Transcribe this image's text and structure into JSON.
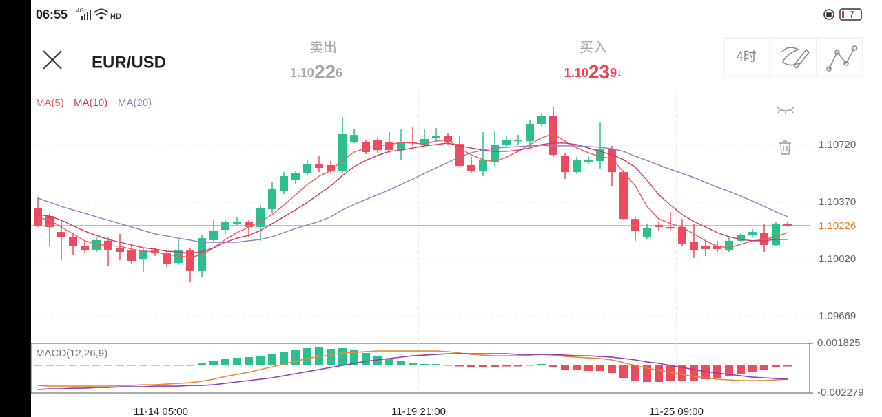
{
  "status_bar": {
    "time": "06:55",
    "network": "4G",
    "hd": "HD",
    "battery": "7"
  },
  "header": {
    "symbol": "EUR/USD",
    "sell_label": "卖出",
    "sell_price": {
      "head": "1.10",
      "pips": "22",
      "tail": "6"
    },
    "buy_label": "买入",
    "buy_price": {
      "head": "1.10",
      "pips": "23",
      "tail": "9",
      "arrow": "↓"
    },
    "timeframe": "4时"
  },
  "chart_data": [
    {
      "type": "candlestick",
      "categories": [
        null,
        null,
        null,
        null,
        null,
        null,
        null,
        null,
        null,
        null,
        "11-14 05:00",
        null,
        null,
        null,
        null,
        null,
        null,
        null,
        null,
        null,
        null,
        null,
        null,
        null,
        null,
        null,
        null,
        null,
        null,
        null,
        null,
        null,
        "11-19 21:00",
        null,
        null,
        null,
        null,
        null,
        null,
        null,
        null,
        null,
        null,
        null,
        null,
        null,
        null,
        null,
        null,
        null,
        null,
        null,
        null,
        null,
        "11-25 09:00",
        null,
        null,
        null,
        null,
        null,
        null,
        null,
        null,
        null,
        null
      ],
      "open": [
        1.10336,
        1.10285,
        1.10188,
        1.10155,
        1.101,
        1.10079,
        1.10134,
        1.10087,
        1.10074,
        1.1002,
        1.10074,
        1.10057,
        1.09998,
        1.10074,
        1.09948,
        1.10138,
        1.10201,
        1.10239,
        1.10252,
        1.10218,
        1.10328,
        1.10441,
        1.10505,
        1.10547,
        1.10606,
        1.10598,
        1.10564,
        1.10741,
        1.10741,
        1.1075,
        1.10741,
        1.1069,
        1.10741,
        1.10724,
        1.10766,
        1.10779,
        1.10728,
        1.10598,
        1.1056,
        1.10619,
        1.10724,
        1.10745,
        1.10745,
        1.10851,
        1.10901,
        1.10657,
        1.10555,
        1.10619,
        1.10623,
        1.10699,
        1.10555,
        1.10268,
        1.10159,
        1.10231,
        1.10218,
        1.10218,
        1.10125,
        1.10104,
        1.101,
        1.10074,
        1.10134,
        1.10167,
        1.10184,
        1.10108,
        1.10235
      ],
      "high": [
        1.10399,
        1.10302,
        1.1026,
        1.10176,
        1.10134,
        1.10155,
        1.10155,
        1.10176,
        1.10108,
        1.10091,
        1.10091,
        1.1007,
        1.10146,
        1.10091,
        1.10167,
        1.1026,
        1.1026,
        1.10281,
        1.1026,
        1.10353,
        1.10492,
        1.10555,
        1.10564,
        1.10631,
        1.10652,
        1.10623,
        1.10893,
        1.10817,
        1.10754,
        1.10766,
        1.108,
        1.10817,
        1.1083,
        1.10817,
        1.10826,
        1.10792,
        1.10779,
        1.10648,
        1.108,
        1.10809,
        1.10775,
        1.10783,
        1.10872,
        1.10918,
        1.10956,
        1.10669,
        1.10648,
        1.10652,
        1.10859,
        1.10716,
        1.10568,
        1.10281,
        1.10239,
        1.10252,
        1.10311,
        1.10268,
        1.10239,
        1.10134,
        1.10134,
        1.10155,
        1.10184,
        1.10205,
        1.10235,
        1.10247,
        1.10252
      ],
      "low": [
        1.10218,
        1.10104,
        1.10015,
        1.10049,
        1.10062,
        1.10066,
        1.09982,
        1.10015,
        1.09994,
        1.09944,
        1.10041,
        1.09973,
        1.09986,
        1.0988,
        1.0991,
        1.10125,
        1.10176,
        1.10231,
        1.10155,
        1.10134,
        1.10302,
        1.1042,
        1.10484,
        1.10539,
        1.10555,
        1.10547,
        1.10547,
        1.10733,
        1.10665,
        1.10674,
        1.10674,
        1.10631,
        1.10716,
        1.10716,
        1.10737,
        1.10724,
        1.10585,
        1.10547,
        1.1053,
        1.10585,
        1.10712,
        1.1072,
        1.10707,
        1.10838,
        1.10648,
        1.10513,
        1.10543,
        1.10606,
        1.10572,
        1.10471,
        1.1026,
        1.10134,
        1.10146,
        1.10197,
        1.10201,
        1.10104,
        1.10028,
        1.10041,
        1.10066,
        1.10066,
        1.10125,
        1.10159,
        1.10066,
        1.101,
        1.10218
      ],
      "close": [
        1.10226,
        1.10218,
        1.10155,
        1.101,
        1.10074,
        1.10138,
        1.10079,
        1.10066,
        1.10011,
        1.10074,
        1.10057,
        1.09994,
        1.10074,
        1.09948,
        1.1015,
        1.10197,
        1.10247,
        1.10252,
        1.10218,
        1.10332,
        1.1045,
        1.1053,
        1.10547,
        1.10606,
        1.10581,
        1.10564,
        1.10788,
        1.10783,
        1.10678,
        1.1069,
        1.1069,
        1.10741,
        1.10733,
        1.10758,
        1.10775,
        1.10737,
        1.10593,
        1.1056,
        1.10627,
        1.10724,
        1.1075,
        1.10754,
        1.10851,
        1.10901,
        1.10661,
        1.10555,
        1.10627,
        1.10631,
        1.10699,
        1.10555,
        1.10268,
        1.10193,
        1.10214,
        1.10218,
        1.10209,
        1.10117,
        1.10074,
        1.10083,
        1.10083,
        1.10134,
        1.10171,
        1.10188,
        1.10108,
        1.10235,
        1.10226
      ],
      "series": [
        {
          "name": "MA(5)",
          "color": "#ef5a5a",
          "values": [
            1.10277,
            1.1026,
            1.10218,
            1.10176,
            1.10134,
            1.10112,
            1.10104,
            1.101,
            1.10083,
            1.1007,
            1.10066,
            1.10049,
            1.10041,
            1.10032,
            1.10049,
            1.10091,
            1.10142,
            1.10184,
            1.10218,
            1.10252,
            1.10294,
            1.10353,
            1.10416,
            1.10479,
            1.1053,
            1.10564,
            1.10627,
            1.10678,
            1.10703,
            1.10716,
            1.10724,
            1.10737,
            1.10733,
            1.10728,
            1.10745,
            1.10754,
            1.10703,
            1.10661,
            1.10631,
            1.10619,
            1.10648,
            1.10682,
            1.10724,
            1.10766,
            1.10788,
            1.10745,
            1.10703,
            1.10674,
            1.10648,
            1.1064,
            1.10555,
            1.10471,
            1.10344,
            1.10268,
            1.10239,
            1.10218,
            1.10176,
            1.10134,
            1.101,
            1.10091,
            1.10112,
            1.10134,
            1.10142,
            1.10159,
            1.10184
          ]
        },
        {
          "name": "MA(10)",
          "color": "#d2336b",
          "values": [
            1.10294,
            1.10285,
            1.1026,
            1.10226,
            1.10193,
            1.10167,
            1.10142,
            1.10125,
            1.10108,
            1.10091,
            1.10083,
            1.1007,
            1.10066,
            1.10057,
            1.10066,
            1.10091,
            1.10125,
            1.1015,
            1.10167,
            1.10197,
            1.10239,
            1.10281,
            1.10323,
            1.1037,
            1.1042,
            1.10471,
            1.10534,
            1.10589,
            1.10627,
            1.10657,
            1.10682,
            1.1069,
            1.10703,
            1.10716,
            1.10724,
            1.10733,
            1.10716,
            1.10703,
            1.1069,
            1.10682,
            1.10682,
            1.1069,
            1.10703,
            1.10724,
            1.10733,
            1.10733,
            1.10724,
            1.10703,
            1.10682,
            1.10661,
            1.10631,
            1.10585,
            1.10505,
            1.10416,
            1.10353,
            1.10294,
            1.10252,
            1.10218,
            1.10184,
            1.10159,
            1.10142,
            1.10134,
            1.10134,
            1.10142,
            1.10142
          ]
        },
        {
          "name": "MA(20)",
          "color": "#8d80c9",
          "values": [
            1.10395,
            1.1037,
            1.10344,
            1.10323,
            1.10302,
            1.10281,
            1.1026,
            1.10239,
            1.10218,
            1.10197,
            1.10176,
            1.10163,
            1.1015,
            1.10138,
            1.10125,
            1.10125,
            1.10125,
            1.10125,
            1.10134,
            1.10142,
            1.10159,
            1.10184,
            1.10209,
            1.10231,
            1.10252,
            1.10281,
            1.10323,
            1.10357,
            1.10387,
            1.10416,
            1.10446,
            1.10479,
            1.10513,
            1.10547,
            1.10581,
            1.10614,
            1.10648,
            1.10674,
            1.1069,
            1.10703,
            1.10707,
            1.10712,
            1.10716,
            1.1072,
            1.10716,
            1.10716,
            1.10716,
            1.10712,
            1.10707,
            1.10699,
            1.10682,
            1.10652,
            1.10627,
            1.10598,
            1.10572,
            1.10547,
            1.10522,
            1.10492,
            1.10463,
            1.10437,
            1.10408,
            1.10378,
            1.10344,
            1.10311,
            1.10281
          ]
        }
      ],
      "up_color": "#2bbf8e",
      "down_color": "#ec4b5e",
      "current_price": 1.10226,
      "current_price_color": "#f07d1a",
      "ylim": [
        1.09513,
        1.11062
      ],
      "yticks": [
        1.09669,
        {
          "value": 1.1002,
          "label": "1.10020"
        },
        {
          "value": 1.1037,
          "label": "1.10370"
        },
        {
          "value": 1.1072,
          "label": "1.10720"
        }
      ],
      "grid": true
    },
    {
      "type": "macd",
      "title": "MACD(12,26,9)",
      "values": [
        5.7e-05,
        5.7e-05,
        5.7e-05,
        5.7e-05,
        5.7e-05,
        5.7e-05,
        5.7e-05,
        5.7e-05,
        5.7e-05,
        5.7e-05,
        5.7e-05,
        5.7e-05,
        5.7e-05,
        5.7e-05,
        0.000171,
        0.000342,
        0.000513,
        0.000627,
        0.000684,
        0.000798,
        0.000969,
        0.00114,
        0.001311,
        0.001425,
        0.001482,
        0.001368,
        0.001425,
        0.001311,
        0.001026,
        0.000798,
        0.00057,
        0.000399,
        0.000228,
        0.000114,
        0.000114,
        5.7e-05,
        -5.7e-05,
        -0.000171,
        -0.000171,
        -0.000171,
        -5.7e-05,
        -5.7e-05,
        5.7e-05,
        0.000114,
        -0.000114,
        -0.000342,
        -0.000399,
        -0.000456,
        -0.000456,
        -0.000627,
        -0.001026,
        -0.001254,
        -0.001368,
        -0.001368,
        -0.001311,
        -0.001311,
        -0.001254,
        -0.00114,
        -0.001083,
        -0.000912,
        -0.000684,
        -0.000513,
        -0.000342,
        -0.000171,
        -5.7e-05
      ],
      "series": [
        {
          "color": "#e8893a",
          "values": [
            -0.001653,
            -0.00171,
            -0.00171,
            -0.00171,
            -0.00171,
            -0.00171,
            -0.00171,
            -0.001653,
            -0.001653,
            -0.001596,
            -0.001596,
            -0.001539,
            -0.001482,
            -0.001425,
            -0.001311,
            -0.00114,
            -0.000912,
            -0.000741,
            -0.00057,
            -0.000342,
            -0.000114,
            0.000114,
            0.000342,
            0.00057,
            0.000741,
            0.000855,
            0.001026,
            0.001083,
            0.00114,
            0.001197,
            0.001197,
            0.001197,
            0.001197,
            0.001197,
            0.001197,
            0.00114,
            0.001026,
            0.000912,
            0.000855,
            0.000798,
            0.000798,
            0.000798,
            0.000855,
            0.000912,
            0.000855,
            0.000741,
            0.000684,
            0.000627,
            0.00057,
            0.000456,
            0.000228,
            0,
            -0.000228,
            -0.000399,
            -0.00057,
            -0.000741,
            -0.000912,
            -0.001026,
            -0.00114,
            -0.001197,
            -0.001254,
            -0.001254,
            -0.001254,
            -0.001197,
            -0.00114
          ]
        },
        {
          "color": "#8e3fb4",
          "values": [
            -0.001995,
            -0.001938,
            -0.001938,
            -0.001881,
            -0.001881,
            -0.001824,
            -0.001824,
            -0.001767,
            -0.001767,
            -0.001767,
            -0.00171,
            -0.00171,
            -0.00171,
            -0.001653,
            -0.001653,
            -0.001596,
            -0.001482,
            -0.001368,
            -0.001254,
            -0.00114,
            -0.001026,
            -0.000855,
            -0.000684,
            -0.000513,
            -0.000342,
            -0.000171,
            0,
            0.000171,
            0.000342,
            0.000456,
            0.00057,
            0.000684,
            0.000798,
            0.000855,
            0.000912,
            0.000969,
            0.000969,
            0.000969,
            0.000969,
            0.000969,
            0.000969,
            0.000912,
            0.000912,
            0.000912,
            0.000912,
            0.000855,
            0.000798,
            0.000798,
            0.000741,
            0.000684,
            0.00057,
            0.000456,
            0.000285,
            0.000171,
            0,
            -0.000171,
            -0.000342,
            -0.000513,
            -0.000627,
            -0.000741,
            -0.000855,
            -0.000969,
            -0.001026,
            -0.001083,
            -0.00114
          ]
        }
      ],
      "up_color": "#2bbf8e",
      "down_color": "#ec4b5e",
      "ylim": [
        -0.002279,
        0.001825
      ],
      "yticks": [
        -0.002279,
        0.001825
      ]
    }
  ]
}
